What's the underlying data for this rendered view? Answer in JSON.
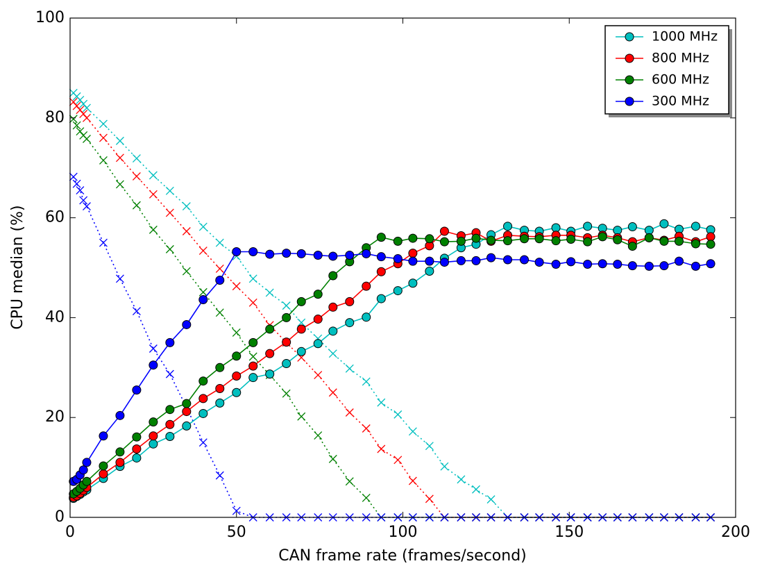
{
  "chart_data": {
    "type": "line",
    "x_label": "CAN frame rate (frames/second)",
    "y_label": "CPU median (%)",
    "x": [
      1,
      2,
      3,
      4,
      5,
      10,
      15,
      20,
      25,
      30,
      35,
      40,
      45,
      50,
      55,
      60,
      65,
      69.5,
      74.5,
      79,
      84,
      89,
      93.5,
      98.5,
      103,
      108,
      112.5,
      117.5,
      122,
      126.5,
      131.5,
      136.5,
      141,
      146,
      150.5,
      155.5,
      160,
      164.5,
      169,
      174,
      178.5,
      183,
      188,
      192.5
    ],
    "xlim": [
      0,
      200
    ],
    "xticks": [
      0,
      50,
      100,
      150,
      200
    ],
    "ylim": [
      0,
      100
    ],
    "yticks": [
      0,
      20,
      40,
      60,
      80,
      100
    ],
    "legend": "upper right",
    "series": [
      {
        "color": "#00bfbf",
        "linestyle": "dotted",
        "marker": "x",
        "values": [
          85,
          84.3,
          83.6,
          82.8,
          82,
          78.8,
          75.4,
          71.9,
          68.5,
          65.4,
          62.3,
          58.2,
          55,
          52.3,
          47.8,
          45,
          42.4,
          39,
          35.8,
          32.8,
          29.8,
          27.2,
          23,
          20.6,
          17.2,
          14.3,
          10.2,
          7.6,
          5.6,
          3.6,
          0,
          0,
          0,
          0,
          0,
          0,
          0,
          0,
          0,
          0,
          0,
          0,
          0,
          0
        ]
      },
      {
        "color": "#ff0000",
        "linestyle": "dotted",
        "marker": "x",
        "values": [
          83.2,
          82.4,
          81.6,
          80.8,
          80,
          76,
          72,
          68.3,
          64.7,
          61,
          57.3,
          53.4,
          49.8,
          46.3,
          43,
          38.5,
          35,
          32,
          28.5,
          25,
          21,
          17.8,
          13.7,
          11.5,
          7.3,
          3.7,
          0,
          0,
          0,
          0,
          0,
          0,
          0,
          0,
          0,
          0,
          0,
          0,
          0,
          0,
          0,
          0,
          0,
          0
        ]
      },
      {
        "color": "#008000",
        "linestyle": "dotted",
        "marker": "x",
        "values": [
          79.8,
          78.5,
          77.3,
          76.5,
          75.8,
          71.5,
          66.7,
          62.5,
          57.6,
          53.7,
          49.3,
          45.1,
          41,
          37,
          32.2,
          28.5,
          24.8,
          20.2,
          16.4,
          11.7,
          7.2,
          3.9,
          0,
          0,
          0,
          0,
          0,
          0,
          0,
          0,
          0,
          0,
          0,
          0,
          0,
          0,
          0,
          0,
          0,
          0,
          0,
          0,
          0,
          0
        ]
      },
      {
        "color": "#0000ff",
        "linestyle": "dotted",
        "marker": "x",
        "values": [
          68.2,
          66.8,
          65.5,
          63.5,
          62.3,
          55,
          47.8,
          41.3,
          33.8,
          28.7,
          22,
          15,
          8.4,
          1.3,
          0,
          0,
          0,
          0,
          0,
          0,
          0,
          0,
          0,
          0,
          0,
          0,
          0,
          0,
          0,
          0,
          0,
          0,
          0,
          0,
          0,
          0,
          0,
          0,
          0,
          0,
          0,
          0,
          0,
          0
        ]
      },
      {
        "name": "1000 MHz",
        "color": "#00bfbf",
        "linestyle": "solid",
        "marker": "o",
        "values": [
          3.8,
          4.2,
          4.6,
          5.1,
          5.5,
          7.8,
          10.2,
          11.9,
          14.7,
          16.2,
          18.3,
          20.8,
          22.9,
          25,
          28,
          28.7,
          30.8,
          33.2,
          34.8,
          37.3,
          39,
          40.1,
          43.8,
          45.4,
          46.9,
          49.3,
          51.9,
          54,
          54.7,
          56.6,
          58.3,
          57.5,
          57.3,
          58,
          57.3,
          58.3,
          57.9,
          57.5,
          58.2,
          57.5,
          58.8,
          57.7,
          58.3,
          57.6
        ]
      },
      {
        "name": "800 MHz",
        "color": "#ff0000",
        "linestyle": "solid",
        "marker": "o",
        "values": [
          4,
          4.3,
          4.8,
          5.4,
          6,
          8.7,
          11,
          13.7,
          16.3,
          18.6,
          21.2,
          23.8,
          25.8,
          28.3,
          30.3,
          32.8,
          35.1,
          37.7,
          39.7,
          42.1,
          43.2,
          46.3,
          49.2,
          50.8,
          52.9,
          54.4,
          57.3,
          56.4,
          57,
          55.3,
          56.5,
          56.3,
          56.2,
          56.5,
          56.5,
          56,
          56.5,
          56,
          55.2,
          56,
          55.5,
          56.3,
          55.2,
          56.2
        ]
      },
      {
        "name": "600 MHz",
        "color": "#008000",
        "linestyle": "solid",
        "marker": "o",
        "values": [
          4.7,
          5.2,
          5.8,
          6.5,
          7.2,
          10.3,
          13.1,
          16.1,
          19.1,
          21.6,
          22.8,
          27.3,
          30,
          32.3,
          35,
          37.7,
          40,
          43.2,
          44.7,
          48.4,
          51.2,
          54,
          56.1,
          55.3,
          55.9,
          55.8,
          55.2,
          55.3,
          55.9,
          55.5,
          55.4,
          55.8,
          55.8,
          55.4,
          55.7,
          55.2,
          56.2,
          55.6,
          54.3,
          56,
          55.3,
          55.3,
          54.8,
          54.7
        ]
      },
      {
        "name": "300 MHz",
        "color": "#0000ff",
        "linestyle": "solid",
        "marker": "o",
        "values": [
          7.2,
          7.6,
          8.5,
          9.5,
          11,
          16.3,
          20.4,
          25.5,
          30.5,
          35,
          38.6,
          43.6,
          47.5,
          53.2,
          53.2,
          52.7,
          52.9,
          52.8,
          52.5,
          52.3,
          52.5,
          52.8,
          52.2,
          51.8,
          51.3,
          51.3,
          51.1,
          51.4,
          51.4,
          52,
          51.6,
          51.6,
          51.1,
          50.7,
          51.2,
          50.7,
          50.8,
          50.7,
          50.4,
          50.3,
          50.4,
          51.3,
          50.3,
          50.8
        ]
      }
    ]
  }
}
